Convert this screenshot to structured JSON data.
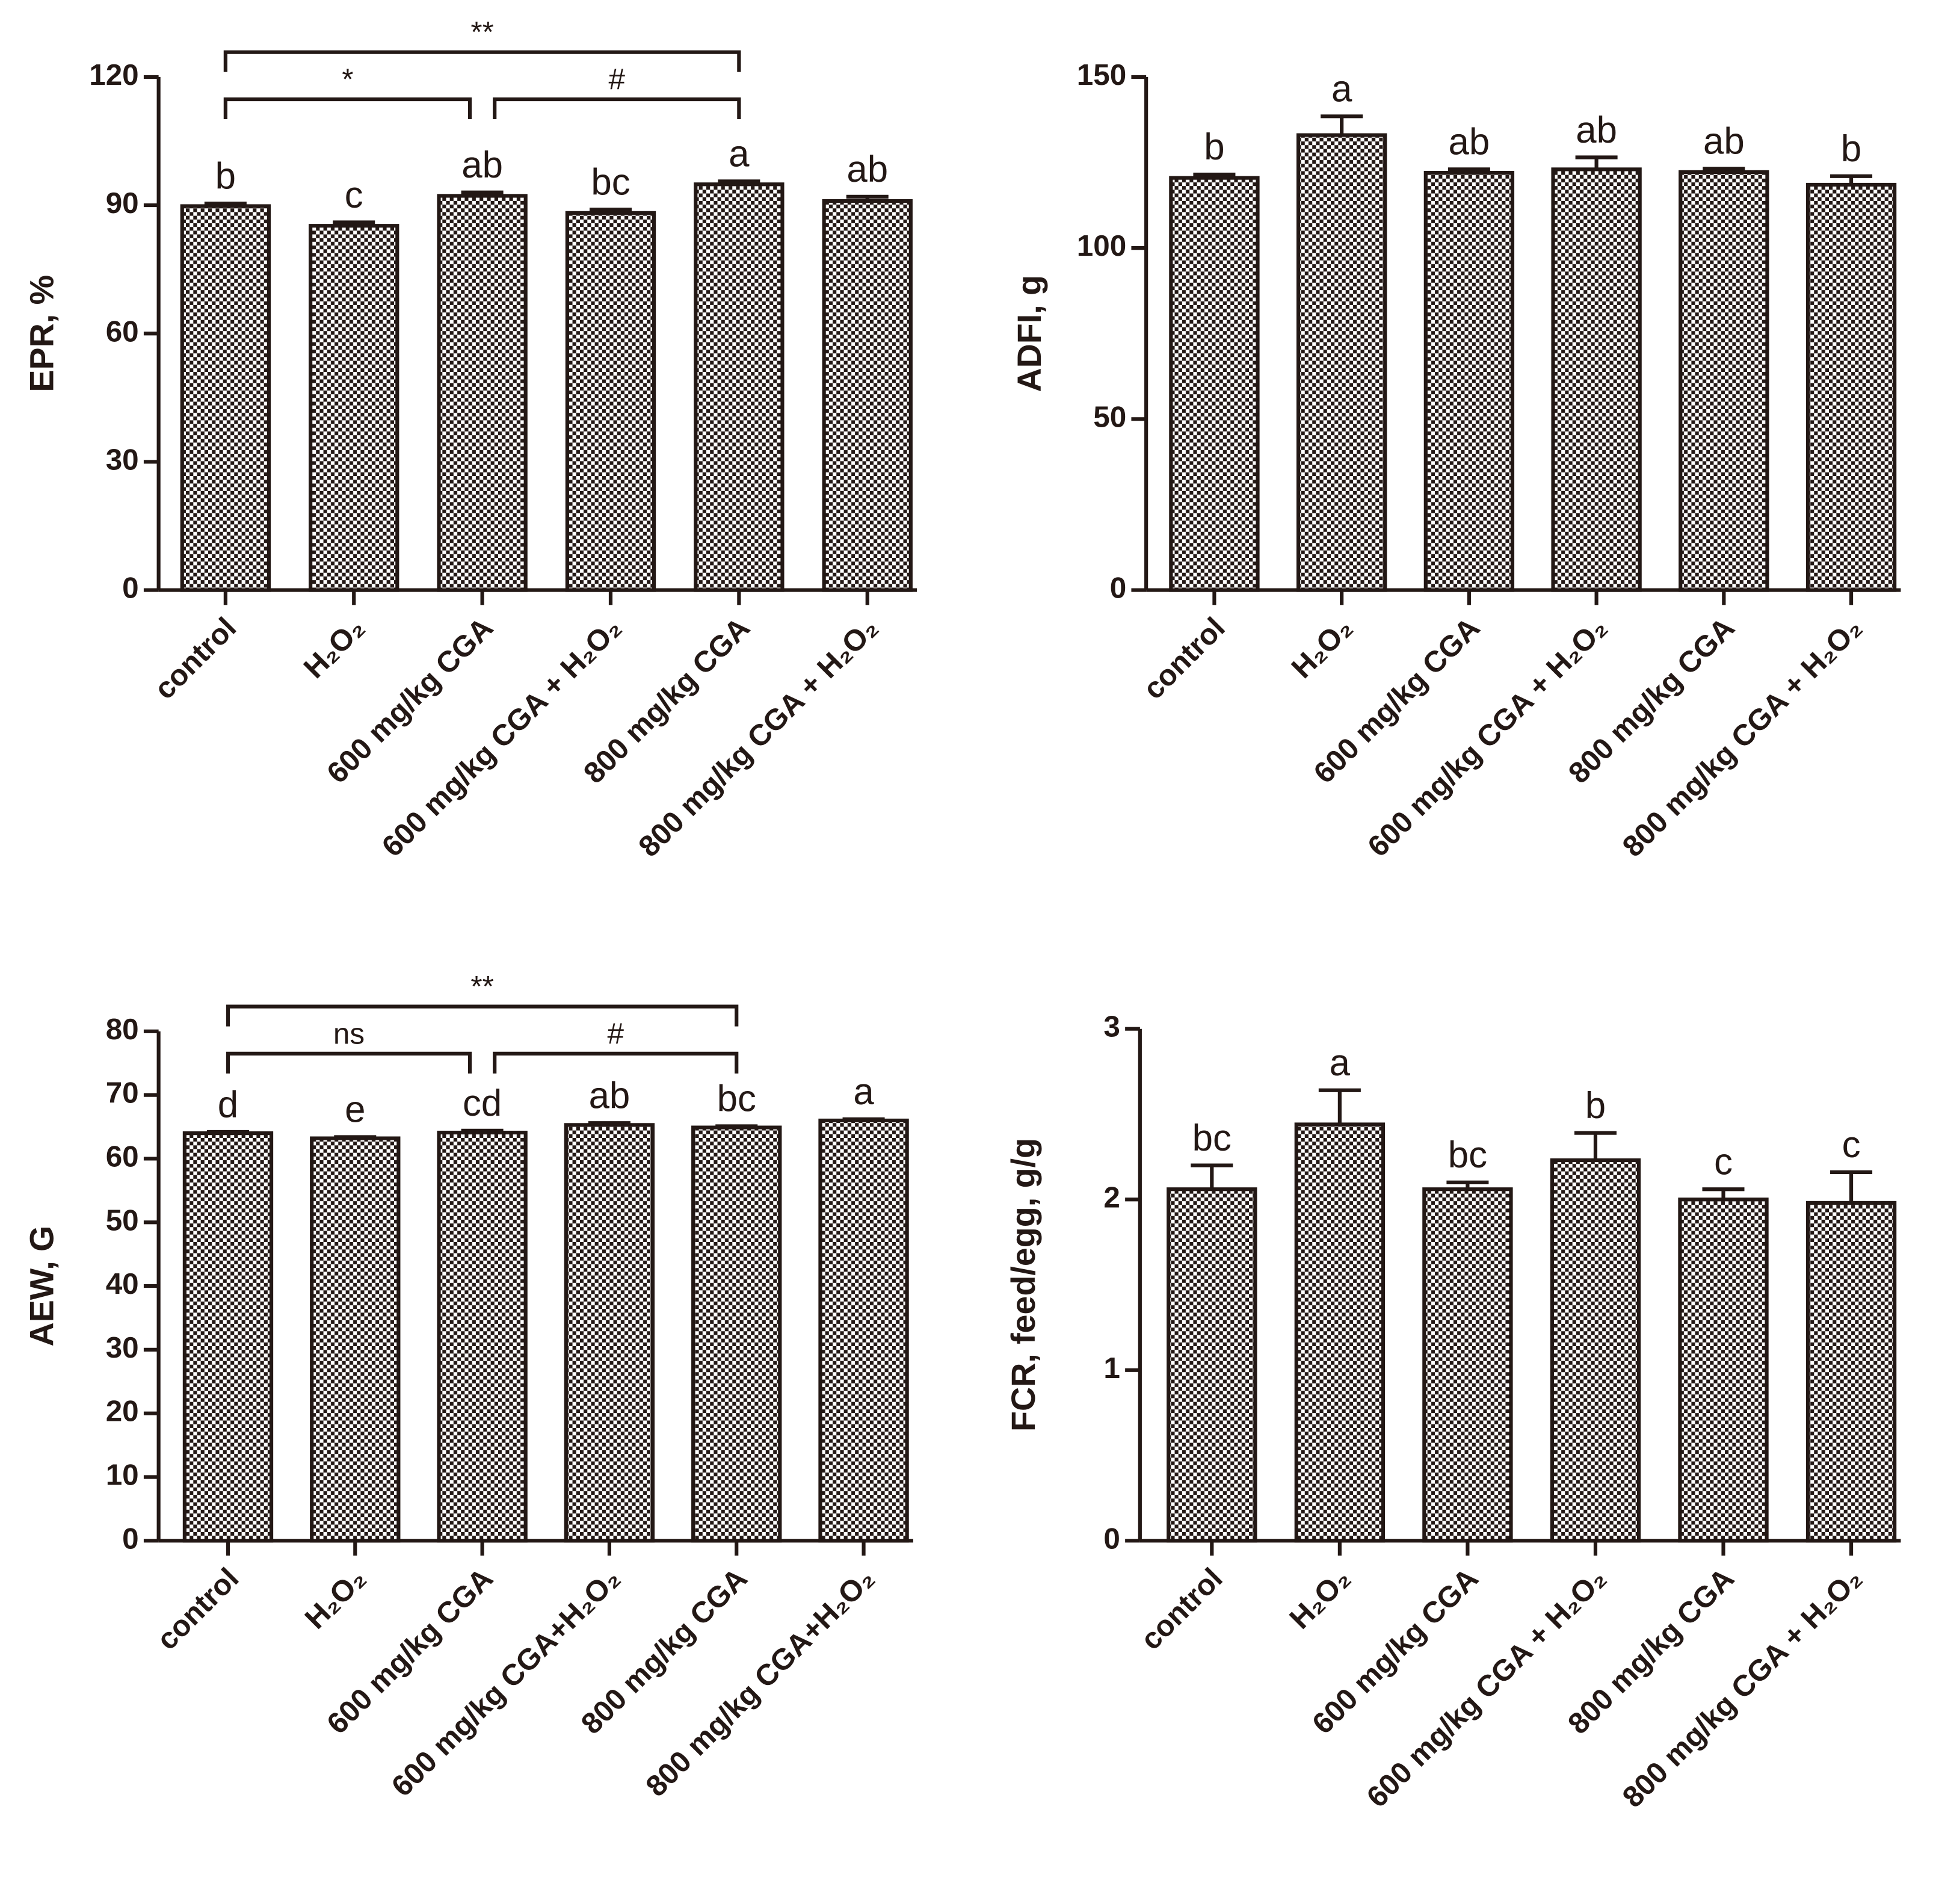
{
  "chart_data": [
    {
      "type": "bar",
      "y_label": "EPR, %",
      "categories": [
        "control",
        "H₂O₂",
        "600 mg/kg CGA",
        "600 mg/kg CGA + H₂O₂",
        "800 mg/kg CGA",
        "800 mg/kg CGA + H₂O₂"
      ],
      "values": [
        89.8,
        85.2,
        92.2,
        88.2,
        94.9,
        91.0
      ],
      "errors": [
        0.6,
        0.8,
        0.8,
        0.8,
        0.7,
        1.0
      ],
      "letters": [
        "b",
        "c",
        "ab",
        "bc",
        "a",
        "ab"
      ],
      "brackets": [
        {
          "from": 0,
          "to": 4,
          "label": "**"
        },
        {
          "from": 0,
          "to": 2,
          "label": "*"
        },
        {
          "from": 2,
          "to": 4,
          "label": "#"
        }
      ],
      "ylim": [
        0,
        120
      ],
      "yticks": [
        0,
        30,
        60,
        90,
        120
      ]
    },
    {
      "type": "bar",
      "y_label": "ADFI, g",
      "categories": [
        "control",
        "H₂O₂",
        "600 mg/kg CGA",
        "600 mg/kg CGA + H₂O₂",
        "800 mg/kg CGA",
        "800 mg/kg CGA + H₂O₂"
      ],
      "values": [
        120.5,
        133.0,
        122.0,
        123.0,
        122.2,
        118.5
      ],
      "errors": [
        1.0,
        5.5,
        1.0,
        3.5,
        1.0,
        2.5
      ],
      "letters": [
        "b",
        "a",
        "ab",
        "ab",
        "ab",
        "b"
      ],
      "ylim": [
        0,
        150
      ],
      "yticks": [
        0,
        50,
        100,
        150
      ]
    },
    {
      "type": "bar",
      "y_label": "AEW, G",
      "categories": [
        "control",
        "H₂O₂",
        "600 mg/kg CGA",
        "600 mg/kg CGA+H₂O₂",
        "800 mg/kg CGA",
        "800 mg/kg CGA+H₂O₂"
      ],
      "values": [
        64.0,
        63.2,
        64.1,
        65.3,
        64.9,
        66.0
      ],
      "errors": [
        0.2,
        0.2,
        0.3,
        0.3,
        0.2,
        0.2
      ],
      "letters": [
        "d",
        "e",
        "cd",
        "ab",
        "bc",
        "a"
      ],
      "brackets": [
        {
          "from": 0,
          "to": 4,
          "label": "**"
        },
        {
          "from": 0,
          "to": 2,
          "label": "ns"
        },
        {
          "from": 2,
          "to": 4,
          "label": "#"
        }
      ],
      "ylim": [
        0,
        80
      ],
      "yticks": [
        0,
        10,
        20,
        30,
        40,
        50,
        60,
        70,
        80
      ]
    },
    {
      "type": "bar",
      "y_label": "FCR, feed/egg, g/g",
      "categories": [
        "control",
        "H₂O₂",
        "600 mg/kg CGA",
        "600 mg/kg CGA + H₂O₂",
        "800 mg/kg CGA",
        "800 mg/kg CGA + H₂O₂"
      ],
      "values": [
        2.06,
        2.44,
        2.06,
        2.23,
        2.0,
        1.98
      ],
      "errors": [
        0.14,
        0.2,
        0.04,
        0.16,
        0.06,
        0.18
      ],
      "letters": [
        "bc",
        "a",
        "bc",
        "b",
        "c",
        "c"
      ],
      "ylim": [
        0,
        3
      ],
      "yticks": [
        0,
        1,
        2,
        3
      ]
    }
  ]
}
